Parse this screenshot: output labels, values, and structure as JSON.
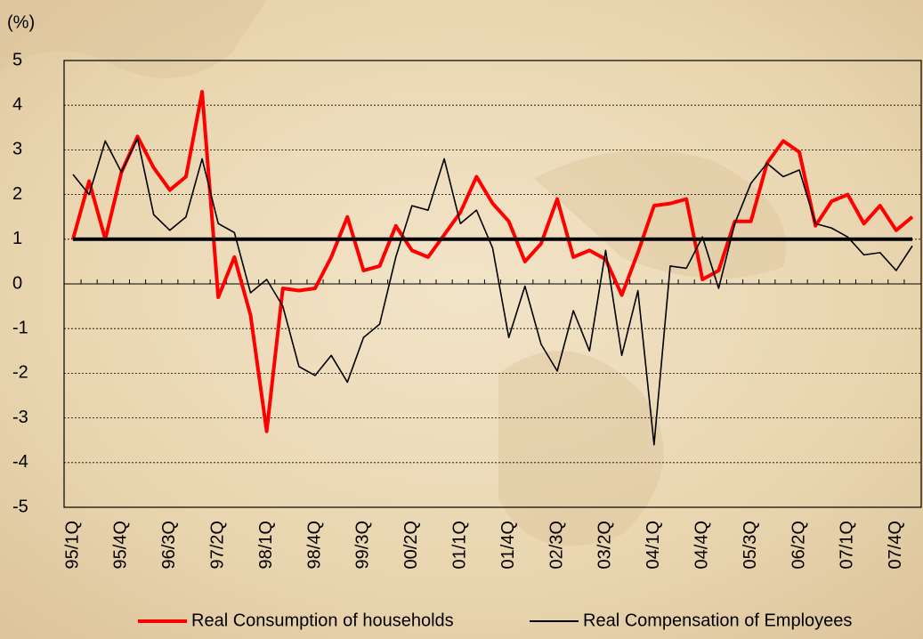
{
  "chart_data": {
    "type": "line",
    "y_unit_label": "(%)",
    "categories": [
      "95/1Q",
      null,
      null,
      "95/4Q",
      null,
      null,
      "96/3Q",
      null,
      null,
      "97/2Q",
      null,
      null,
      "98/1Q",
      null,
      null,
      "98/4Q",
      null,
      null,
      "99/3Q",
      null,
      null,
      "00/2Q",
      null,
      null,
      "01/1Q",
      null,
      null,
      "01/4Q",
      null,
      null,
      "02/3Q",
      null,
      null,
      "03/2Q",
      null,
      null,
      "04/1Q",
      null,
      null,
      "04/4Q",
      null,
      null,
      "05/3Q",
      null,
      null,
      "06/2Q",
      null,
      null,
      "07/1Q",
      null,
      null,
      "07/4Q",
      null
    ],
    "series": [
      {
        "name": "Real Consumption of households",
        "color": "#ff0000",
        "width": 4,
        "values": [
          1.0,
          2.3,
          1.0,
          2.5,
          3.3,
          2.6,
          2.1,
          2.4,
          4.3,
          -0.3,
          0.6,
          -0.7,
          -3.3,
          -0.1,
          -0.15,
          -0.1,
          0.6,
          1.5,
          0.3,
          0.4,
          1.3,
          0.75,
          0.6,
          1.1,
          1.6,
          2.4,
          1.8,
          1.4,
          0.5,
          0.9,
          1.9,
          0.6,
          0.75,
          0.55,
          -0.25,
          0.7,
          1.75,
          1.8,
          1.9,
          0.1,
          0.3,
          1.4,
          1.4,
          2.7,
          3.2,
          2.95,
          1.3,
          1.85,
          2.0,
          1.35,
          1.75,
          1.2,
          1.5
        ]
      },
      {
        "name": "Real Compensation of Employees",
        "color": "#000000",
        "width": 1.6,
        "values": [
          2.45,
          2.0,
          3.2,
          2.5,
          3.25,
          1.55,
          1.2,
          1.5,
          2.8,
          1.35,
          1.15,
          -0.2,
          0.1,
          -0.5,
          -1.85,
          -2.05,
          -1.6,
          -2.2,
          -1.2,
          -0.9,
          0.6,
          1.75,
          1.65,
          2.8,
          1.35,
          1.65,
          0.8,
          -1.2,
          -0.05,
          -1.35,
          -1.95,
          -0.6,
          -1.5,
          0.75,
          -1.6,
          -0.15,
          -3.6,
          0.4,
          0.35,
          1.05,
          -0.1,
          1.35,
          2.25,
          2.7,
          2.4,
          2.55,
          1.35,
          1.25,
          1.05,
          0.65,
          0.7,
          0.3,
          0.85
        ]
      }
    ],
    "reference_line": 1,
    "ylim": [
      -5,
      5
    ],
    "yticks": [
      -5,
      -4,
      -3,
      -2,
      -1,
      0,
      1,
      2,
      3,
      4,
      5
    ],
    "grid": true
  }
}
